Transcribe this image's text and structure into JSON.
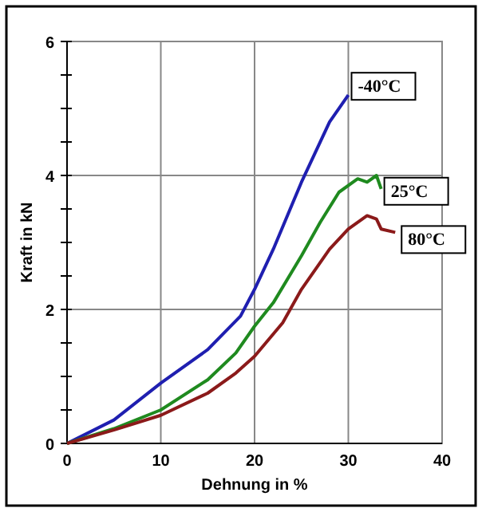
{
  "chart_data": {
    "type": "line",
    "xlabel": "Dehnung in %",
    "ylabel": "Kraft in kN",
    "xlim": [
      0,
      40
    ],
    "ylim": [
      0,
      6
    ],
    "xticks": [
      0,
      10,
      20,
      30,
      40
    ],
    "yticks": [
      0,
      {
        "value": 0.5,
        "label": null
      },
      {
        "value": 1,
        "label": null
      },
      {
        "value": 1.5,
        "label": null
      },
      2,
      {
        "value": 2.5,
        "label": null
      },
      {
        "value": 3,
        "label": null
      },
      {
        "value": 3.5,
        "label": null
      },
      4,
      {
        "value": 4.5,
        "label": null
      },
      {
        "value": 5,
        "label": null
      },
      {
        "value": 5.5,
        "label": null
      },
      6
    ],
    "grid": true,
    "line_style": "solid",
    "marker": "none",
    "series": [
      {
        "name": "-40°C",
        "color": "#1f1fb0",
        "x": [
          0,
          5,
          10,
          15,
          18.5,
          20,
          22,
          25,
          28,
          30
        ],
        "values": [
          0,
          0.35,
          0.9,
          1.4,
          1.9,
          2.3,
          2.9,
          3.9,
          4.8,
          5.2
        ]
      },
      {
        "name": "25°C",
        "color": "#1f8a1f",
        "x": [
          0,
          5,
          10,
          15,
          18,
          20,
          22,
          25,
          27,
          29,
          31,
          32,
          33,
          33.5
        ],
        "values": [
          0,
          0.22,
          0.5,
          0.95,
          1.35,
          1.75,
          2.1,
          2.8,
          3.3,
          3.75,
          3.95,
          3.9,
          4.0,
          3.8
        ]
      },
      {
        "name": "80°C",
        "color": "#8b1a1a",
        "x": [
          0,
          5,
          10,
          15,
          18,
          20,
          23,
          25,
          28,
          30,
          32,
          33,
          33.5,
          35
        ],
        "values": [
          0,
          0.2,
          0.42,
          0.75,
          1.05,
          1.3,
          1.8,
          2.3,
          2.9,
          3.2,
          3.4,
          3.35,
          3.2,
          3.15
        ]
      }
    ]
  }
}
